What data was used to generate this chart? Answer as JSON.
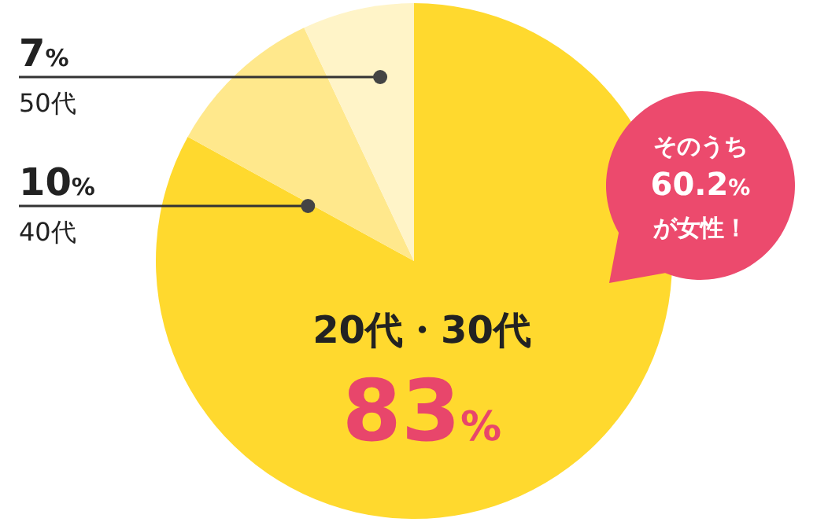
{
  "chart_data": {
    "type": "pie",
    "categories": [
      "20代・30代",
      "40代",
      "50代"
    ],
    "values": [
      83,
      10,
      7
    ],
    "value_labels": [
      "83%",
      "10%",
      "7%"
    ],
    "colors": [
      "#ffd92e",
      "#ffe88c",
      "#fff4c8"
    ],
    "annotations": [
      "そのうち\n60.2%\nが女性！"
    ]
  }
}
